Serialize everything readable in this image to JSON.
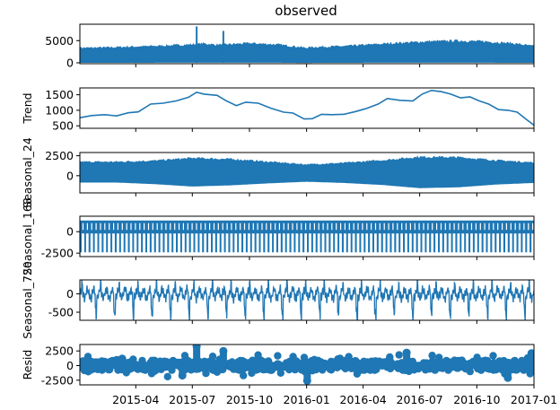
{
  "chart_data": {
    "type": "line",
    "title": "observed",
    "series_color": "#1f77b4",
    "x_axis": {
      "range": [
        "2015-01-01",
        "2017-01-01"
      ],
      "tick_labels": [
        {
          "date": "2015-04-01",
          "label": "2015-04"
        },
        {
          "date": "2015-07-01",
          "label": "2015-07"
        },
        {
          "date": "2015-10-01",
          "label": "2015-10"
        },
        {
          "date": "2016-01-01",
          "label": "2016-01"
        },
        {
          "date": "2016-04-01",
          "label": "2016-04"
        },
        {
          "date": "2016-07-01",
          "label": "2016-07"
        },
        {
          "date": "2016-10-01",
          "label": "2016-10"
        },
        {
          "date": "2017-01-01",
          "label": "2017-01"
        }
      ]
    },
    "panels": [
      {
        "id": "observed",
        "ylabel": "",
        "ylim": [
          -200,
          8700
        ],
        "yticks": [
          0,
          5000
        ],
        "render": "band",
        "envelope_note": "daily oscillation between near 0 and upper envelope",
        "x": [
          "2015-01-01",
          "2015-02-15",
          "2015-04-01",
          "2015-05-15",
          "2015-07-01",
          "2015-07-20",
          "2015-08-10",
          "2015-10-01",
          "2015-11-15",
          "2015-12-31",
          "2016-01-15",
          "2016-03-01",
          "2016-04-15",
          "2016-06-01",
          "2016-07-15",
          "2016-09-01",
          "2016-10-15",
          "2016-12-01",
          "2017-01-01"
        ],
        "upper": [
          3500,
          3600,
          3800,
          4000,
          4300,
          4500,
          4200,
          4600,
          4300,
          3500,
          3700,
          3900,
          4300,
          4700,
          5000,
          5200,
          5000,
          4500,
          3900
        ],
        "lower": [
          100,
          100,
          100,
          120,
          120,
          120,
          120,
          120,
          120,
          80,
          100,
          100,
          120,
          120,
          120,
          120,
          120,
          100,
          100
        ],
        "spikes": [
          {
            "x": "2015-07-08",
            "y": 8200
          },
          {
            "x": "2015-08-20",
            "y": 7200
          }
        ]
      },
      {
        "id": "trend",
        "ylabel": "Trend",
        "ylim": [
          420,
          1720
        ],
        "yticks": [
          500,
          1000,
          1500
        ],
        "render": "line",
        "x": [
          "2015-01-01",
          "2015-01-20",
          "2015-02-10",
          "2015-03-01",
          "2015-03-20",
          "2015-04-05",
          "2015-04-25",
          "2015-05-15",
          "2015-06-05",
          "2015-06-25",
          "2015-07-08",
          "2015-07-20",
          "2015-08-10",
          "2015-08-25",
          "2015-09-10",
          "2015-09-25",
          "2015-10-15",
          "2015-11-05",
          "2015-11-25",
          "2015-12-10",
          "2015-12-28",
          "2016-01-10",
          "2016-01-25",
          "2016-02-10",
          "2016-03-01",
          "2016-03-20",
          "2016-04-05",
          "2016-04-25",
          "2016-05-10",
          "2016-05-30",
          "2016-06-20",
          "2016-07-05",
          "2016-07-20",
          "2016-08-05",
          "2016-08-20",
          "2016-09-05",
          "2016-09-20",
          "2016-10-05",
          "2016-10-20",
          "2016-11-05",
          "2016-11-20",
          "2016-12-05",
          "2016-12-20",
          "2017-01-01"
        ],
        "y": [
          760,
          830,
          860,
          820,
          920,
          950,
          1200,
          1230,
          1300,
          1420,
          1580,
          1520,
          1480,
          1300,
          1150,
          1260,
          1230,
          1060,
          940,
          910,
          720,
          730,
          870,
          860,
          870,
          960,
          1050,
          1200,
          1380,
          1320,
          1300,
          1520,
          1640,
          1600,
          1520,
          1400,
          1430,
          1300,
          1200,
          1020,
          1000,
          940,
          700,
          520
        ]
      },
      {
        "id": "seasonal_24",
        "ylabel": "Seasonal_24",
        "ylim": [
          -2150,
          2900
        ],
        "yticks": [
          0,
          2500
        ],
        "render": "band",
        "x": [
          "2015-01-01",
          "2015-03-01",
          "2015-05-01",
          "2015-07-01",
          "2015-09-01",
          "2015-11-01",
          "2016-01-01",
          "2016-03-01",
          "2016-05-01",
          "2016-07-01",
          "2016-09-01",
          "2016-11-01",
          "2017-01-01"
        ],
        "upper": [
          1800,
          1800,
          1950,
          2300,
          2150,
          1800,
          1450,
          1650,
          2000,
          2450,
          2400,
          2000,
          1700
        ],
        "lower": [
          -800,
          -800,
          -1000,
          -1300,
          -1150,
          -900,
          -700,
          -850,
          -1100,
          -1500,
          -1400,
          -1050,
          -850
        ]
      },
      {
        "id": "seasonal_168",
        "ylabel": "Seasonal_168",
        "ylim": [
          -2900,
          1800
        ],
        "yticks": [
          -2500,
          0
        ],
        "render": "weekly",
        "upper": 1300,
        "lower": -2400
      },
      {
        "id": "seasonal_720",
        "ylabel": "Seasonal_720",
        "ylim": [
          -720,
          380
        ],
        "yticks": [
          -500,
          0
        ],
        "render": "monthly"
      },
      {
        "id": "resid",
        "ylabel": "Resid",
        "ylim": [
          -3300,
          3600
        ],
        "yticks": [
          -2500,
          0,
          2500
        ],
        "render": "scatter",
        "dense_range": [
          -800,
          900
        ],
        "outliers": [
          {
            "x": "2015-07-08",
            "y": 3300
          },
          {
            "x": "2015-08-20",
            "y": 2500
          },
          {
            "x": "2015-06-15",
            "y": -1700
          },
          {
            "x": "2016-01-02",
            "y": -2600
          },
          {
            "x": "2016-06-10",
            "y": 2200
          },
          {
            "x": "2016-11-20",
            "y": -2100
          },
          {
            "x": "2016-12-28",
            "y": 2100
          },
          {
            "x": "2015-03-10",
            "y": 1200
          }
        ]
      }
    ]
  }
}
